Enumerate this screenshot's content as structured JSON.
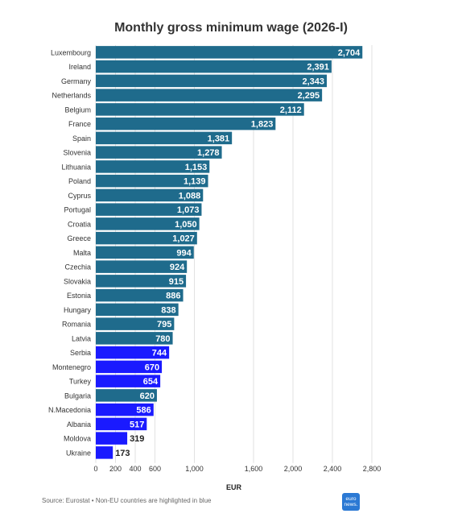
{
  "chart_data": {
    "type": "bar",
    "orientation": "horizontal",
    "title": "Monthly gross minimum wage (2026-I)",
    "xlabel": "EUR",
    "ylabel": "",
    "xlim": [
      0,
      2800
    ],
    "x_ticks": [
      0,
      200,
      400,
      600,
      1000,
      1600,
      2000,
      2400,
      2800
    ],
    "x_tick_labels": [
      "0",
      "200",
      "400",
      "600",
      "1,000",
      "1,600",
      "2,000",
      "2,400",
      "2,800"
    ],
    "categories": [
      "Luxembourg",
      "Ireland",
      "Germany",
      "Netherlands",
      "Belgium",
      "France",
      "Spain",
      "Slovenia",
      "Lithuania",
      "Poland",
      "Cyprus",
      "Portugal",
      "Croatia",
      "Greece",
      "Malta",
      "Czechia",
      "Slovakia",
      "Estonia",
      "Hungary",
      "Romania",
      "Latvia",
      "Serbia",
      "Montenegro",
      "Turkey",
      "Bulgaria",
      "N.Macedonia",
      "Albania",
      "Moldova",
      "Ukraine"
    ],
    "values": [
      2704,
      2391,
      2343,
      2295,
      2112,
      1823,
      1381,
      1278,
      1153,
      1139,
      1088,
      1073,
      1050,
      1027,
      994,
      924,
      915,
      886,
      838,
      795,
      780,
      744,
      670,
      654,
      620,
      586,
      517,
      319,
      173
    ],
    "value_labels": [
      "2,704",
      "2,391",
      "2,343",
      "2,295",
      "2,112",
      "1,823",
      "1,381",
      "1,278",
      "1,153",
      "1,139",
      "1,088",
      "1,073",
      "1,050",
      "1,027",
      "994",
      "924",
      "915",
      "886",
      "838",
      "795",
      "780",
      "744",
      "670",
      "654",
      "620",
      "586",
      "517",
      "319",
      "173"
    ],
    "non_eu": [
      false,
      false,
      false,
      false,
      false,
      false,
      false,
      false,
      false,
      false,
      false,
      false,
      false,
      false,
      false,
      false,
      false,
      false,
      false,
      false,
      false,
      true,
      true,
      true,
      false,
      true,
      true,
      true,
      true
    ],
    "colors": {
      "eu": "#1f6b8c",
      "non_eu": "#1a1aff",
      "grid": "#e2e2e2",
      "label_dark": "#222222"
    },
    "grid": true
  },
  "footer": {
    "source": "Source: Eurostat • Non-EU countries are highlighted in blue",
    "logo_line1": "euro",
    "logo_line2": "news."
  }
}
